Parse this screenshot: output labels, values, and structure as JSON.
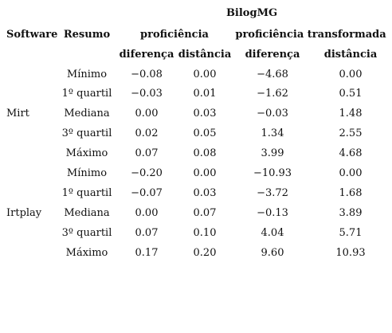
{
  "table": {
    "header": {
      "group_top": "BilogMG",
      "software": "Software",
      "resumo": "Resumo",
      "proficiencia": "proficiência",
      "proficiencia_transformada": "proficiência transformada",
      "sub": [
        "diferença",
        "distância",
        "diferença",
        "distância"
      ]
    },
    "groups": [
      {
        "software": "Mirt",
        "rows": [
          {
            "resumo": "Mínimo",
            "values": [
              "−0.08",
              "0.00",
              "−4.68",
              "0.00"
            ]
          },
          {
            "resumo": "1º quartil",
            "values": [
              "−0.03",
              "0.01",
              "−1.62",
              "0.51"
            ]
          },
          {
            "resumo": "Mediana",
            "values": [
              "0.00",
              "0.03",
              "−0.03",
              "1.48"
            ]
          },
          {
            "resumo": "3º quartil",
            "values": [
              "0.02",
              "0.05",
              "1.34",
              "2.55"
            ]
          },
          {
            "resumo": "Máximo",
            "values": [
              "0.07",
              "0.08",
              "3.99",
              "4.68"
            ]
          }
        ]
      },
      {
        "software": "Irtplay",
        "rows": [
          {
            "resumo": "Mínimo",
            "values": [
              "−0.20",
              "0.00",
              "−10.93",
              "0.00"
            ]
          },
          {
            "resumo": "1º quartil",
            "values": [
              "−0.07",
              "0.03",
              "−3.72",
              "1.68"
            ]
          },
          {
            "resumo": "Mediana",
            "values": [
              "0.00",
              "0.07",
              "−0.13",
              "3.89"
            ]
          },
          {
            "resumo": "3º quartil",
            "values": [
              "0.07",
              "0.10",
              "4.04",
              "5.71"
            ]
          },
          {
            "resumo": "Máximo",
            "values": [
              "0.17",
              "0.20",
              "9.60",
              "10.93"
            ]
          }
        ]
      }
    ]
  }
}
